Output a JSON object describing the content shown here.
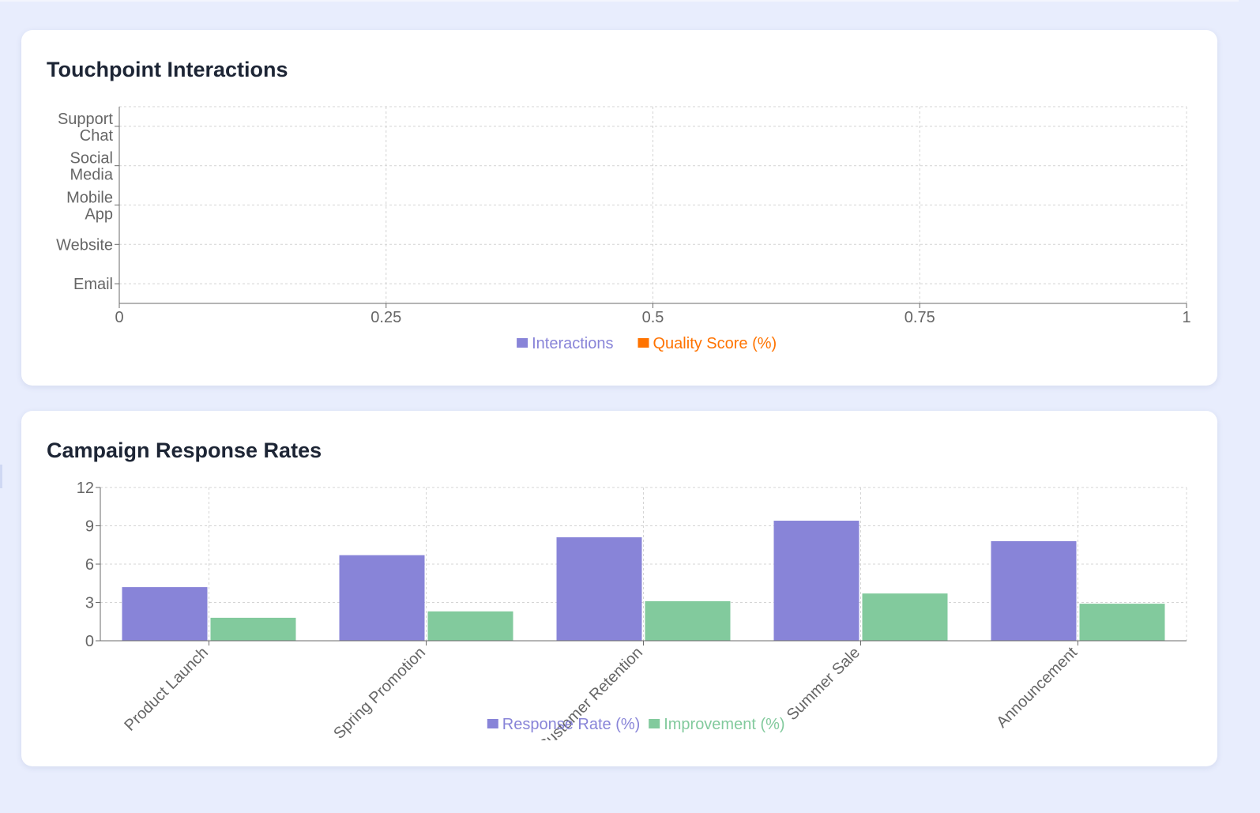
{
  "charts": [
    {
      "id": "touchpoint",
      "title": "Touchpoint Interactions",
      "chart_data": {
        "type": "bar",
        "orientation": "horizontal",
        "categories": [
          "Email",
          "Website",
          "Mobile App",
          "Social Media",
          "Support Chat"
        ],
        "series": [
          {
            "name": "Interactions",
            "color": "#8884d8",
            "values": [
              0,
              0,
              0,
              0,
              0
            ]
          },
          {
            "name": "Quality Score (%)",
            "color": "#ff7300",
            "values": [
              0,
              0,
              0,
              0,
              0
            ]
          }
        ],
        "xlim": [
          0,
          1
        ],
        "xticks": [
          "0",
          "0.25",
          "0.5",
          "0.75",
          "1"
        ],
        "grid": true,
        "legend": "bottom-center"
      }
    },
    {
      "id": "campaign",
      "title": "Campaign Response Rates",
      "chart_data": {
        "type": "bar",
        "orientation": "vertical",
        "categories": [
          "Product Launch",
          "Spring Promotion",
          "Customer Retention",
          "Summer Sale",
          "Announcement"
        ],
        "series": [
          {
            "name": "Response Rate (%)",
            "color": "#8884d8",
            "values": [
              4.2,
              6.7,
              8.1,
              9.4,
              7.8
            ]
          },
          {
            "name": "Improvement (%)",
            "color": "#82ca9d",
            "values": [
              1.8,
              2.3,
              3.1,
              3.7,
              2.9
            ]
          }
        ],
        "ylim": [
          0,
          12
        ],
        "yticks": [
          "0",
          "3",
          "6",
          "9",
          "12"
        ],
        "grid": true,
        "legend": "bottom-center"
      }
    }
  ]
}
